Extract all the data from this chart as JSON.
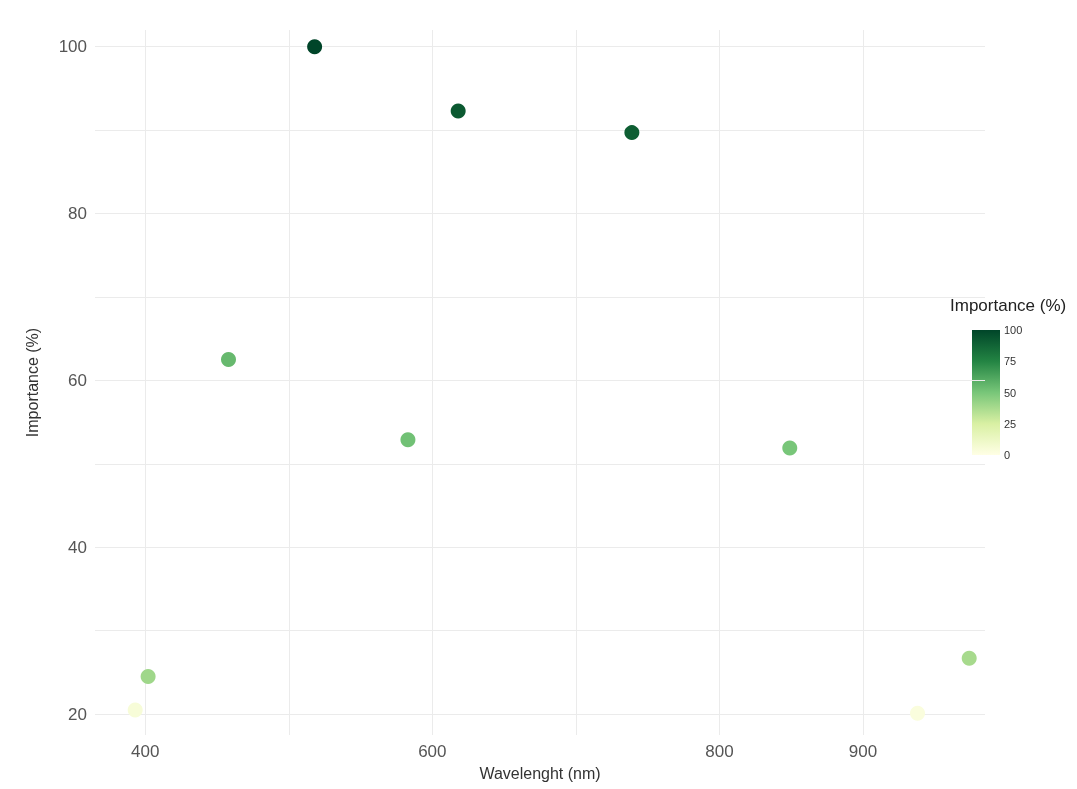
{
  "chart_data": {
    "type": "scatter",
    "xlabel": "Wavelenght (nm)",
    "ylabel": "Importance (%)",
    "clabel": "Importance (%)",
    "x": [
      393,
      402,
      458,
      518,
      583,
      618,
      739,
      849,
      938,
      974
    ],
    "values": [
      20.5,
      24.5,
      62.5,
      100,
      52.9,
      92.3,
      89.7,
      51.9,
      20.1,
      26.7
    ],
    "cvalues": [
      5,
      40,
      55,
      100,
      52,
      92,
      90,
      50,
      3,
      38
    ],
    "clim": [
      0,
      100
    ],
    "cticks": [
      0,
      25,
      50,
      75,
      100
    ],
    "xlim": [
      365,
      985
    ],
    "xticks": [
      400,
      {
        "value": 500,
        "label": null
      },
      600,
      {
        "value": 700,
        "label": null
      },
      800,
      900
    ],
    "ylim": [
      17.5,
      102
    ],
    "yticks": [
      20,
      {
        "value": 30,
        "label": null
      },
      40,
      {
        "value": 50,
        "label": null
      },
      60,
      {
        "value": 70,
        "label": null
      },
      80,
      {
        "value": 90,
        "label": null
      },
      100
    ],
    "grid": true,
    "marker": "circle"
  }
}
